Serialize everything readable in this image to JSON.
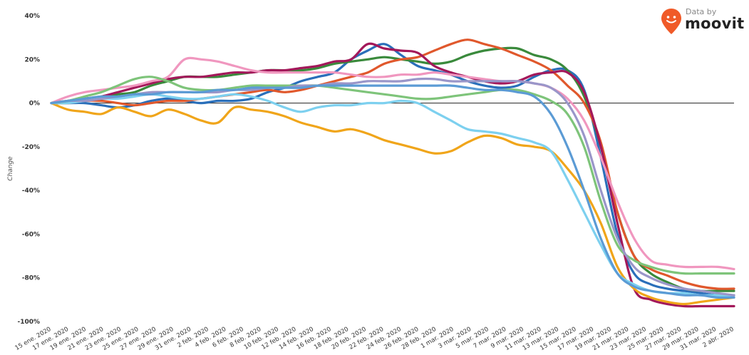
{
  "brand": {
    "caption": "Data by",
    "name": "moovit",
    "icon": "moovit-pin-icon",
    "color": "#f05a28"
  },
  "chart_data": {
    "type": "line",
    "title": "",
    "xlabel": "",
    "ylabel": "Change",
    "ylim": [
      -100,
      40
    ],
    "yticks": [
      40,
      20,
      0,
      -20,
      -40,
      -60,
      -80,
      -100
    ],
    "ytick_labels": [
      "40%",
      "20%",
      "0%",
      "-20%",
      "-40%",
      "-60%",
      "-80%",
      "-100%"
    ],
    "zero_line": true,
    "grid": false,
    "legend": "none",
    "x_tick_labels": [
      "15 ene. 2020",
      "17 ene. 2020",
      "19 ene. 2020",
      "21 ene. 2020",
      "23 ene. 2020",
      "25 ene. 2020",
      "27 ene. 2020",
      "29 ene. 2020",
      "31 ene. 2020",
      "2 feb. 2020",
      "4 feb. 2020",
      "6 feb. 2020",
      "8 feb. 2020",
      "10 feb. 2020",
      "12 feb. 2020",
      "14 feb. 2020",
      "16 feb. 2020",
      "18 feb. 2020",
      "20 feb. 2020",
      "22 feb. 2020",
      "24 feb. 2020",
      "26 feb. 2020",
      "28 feb. 2020",
      "1 mar. 2020",
      "3 mar. 2020",
      "5 mar. 2020",
      "7 mar. 2020",
      "9 mar. 2020",
      "11 mar. 2020",
      "13 mar. 2020",
      "15 mar. 2020",
      "17 mar. 2020",
      "19 mar. 2020",
      "21 mar. 2020",
      "23 mar. 2020",
      "25 mar. 2020",
      "27 mar. 2020",
      "29 mar. 2020",
      "31 mar. 2020",
      "2 abr. 2020"
    ],
    "series": [
      {
        "color": "#2a6fba",
        "values": [
          0,
          0,
          0,
          -1,
          -2,
          -1,
          1,
          2,
          1,
          0,
          1,
          1,
          2,
          5,
          7,
          10,
          12,
          14,
          20,
          24,
          27,
          22,
          17,
          15,
          13,
          10,
          8,
          7,
          8,
          12,
          15,
          15,
          6,
          -25,
          -60,
          -78,
          -83,
          -85,
          -86,
          -87,
          -88,
          -88
        ]
      },
      {
        "color": "#3a8a3c",
        "values": [
          0,
          1,
          2,
          3,
          4,
          5,
          8,
          10,
          12,
          12,
          12,
          13,
          14,
          15,
          15,
          15,
          16,
          18,
          19,
          20,
          21,
          20,
          19,
          18,
          19,
          22,
          24,
          25,
          25,
          22,
          20,
          15,
          3,
          -20,
          -50,
          -70,
          -78,
          -82,
          -85,
          -86,
          -86,
          -86
        ]
      },
      {
        "color": "#e0582c",
        "values": [
          0,
          0,
          1,
          1,
          0,
          -1,
          0,
          1,
          1,
          2,
          3,
          4,
          5,
          6,
          5,
          6,
          8,
          10,
          12,
          14,
          18,
          20,
          21,
          24,
          27,
          29,
          27,
          25,
          22,
          19,
          15,
          8,
          0,
          -18,
          -50,
          -70,
          -76,
          -79,
          -82,
          -84,
          -85,
          -85
        ]
      },
      {
        "color": "#a3185a",
        "values": [
          0,
          1,
          2,
          3,
          5,
          7,
          9,
          11,
          12,
          12,
          13,
          14,
          14,
          15,
          15,
          16,
          17,
          19,
          20,
          27,
          25,
          24,
          23,
          17,
          14,
          12,
          10,
          9,
          10,
          13,
          14,
          14,
          5,
          -20,
          -55,
          -85,
          -90,
          -92,
          -93,
          -93,
          -93,
          -93
        ]
      },
      {
        "color": "#f0a51a",
        "values": [
          0,
          -3,
          -4,
          -5,
          -2,
          -4,
          -6,
          -3,
          -5,
          -8,
          -9,
          -2,
          -3,
          -4,
          -6,
          -9,
          -11,
          -13,
          -12,
          -14,
          -17,
          -19,
          -21,
          -23,
          -22,
          -18,
          -15,
          -16,
          -19,
          -20,
          -22,
          -30,
          -40,
          -55,
          -75,
          -85,
          -89,
          -91,
          -92,
          -91,
          -90,
          -89
        ]
      },
      {
        "color": "#7dd0ef",
        "values": [
          0,
          0,
          1,
          2,
          2,
          3,
          4,
          3,
          2,
          2,
          3,
          4,
          3,
          1,
          -2,
          -4,
          -2,
          -1,
          -1,
          0,
          0,
          1,
          0,
          -4,
          -8,
          -12,
          -13,
          -14,
          -16,
          -18,
          -22,
          -35,
          -50,
          -65,
          -78,
          -83,
          -86,
          -87,
          -87,
          -88,
          -88,
          -89
        ]
      },
      {
        "color": "#f097bf",
        "values": [
          0,
          3,
          5,
          6,
          7,
          8,
          10,
          12,
          20,
          20,
          19,
          17,
          15,
          14,
          14,
          14,
          14,
          14,
          13,
          12,
          12,
          13,
          13,
          14,
          13,
          12,
          11,
          10,
          10,
          9,
          7,
          2,
          -8,
          -25,
          -45,
          -62,
          -72,
          -74,
          -75,
          -75,
          -75,
          -76
        ]
      },
      {
        "color": "#7ec47a",
        "values": [
          0,
          1,
          3,
          5,
          8,
          11,
          12,
          10,
          7,
          6,
          6,
          7,
          8,
          8,
          8,
          8,
          8,
          7,
          6,
          5,
          4,
          3,
          2,
          2,
          3,
          4,
          5,
          6,
          6,
          4,
          1,
          -5,
          -20,
          -45,
          -65,
          -72,
          -75,
          -77,
          -78,
          -78,
          -78,
          -78
        ]
      },
      {
        "color": "#9a96c9",
        "values": [
          0,
          1,
          1,
          2,
          3,
          4,
          5,
          5,
          5,
          5,
          5,
          6,
          6,
          7,
          7,
          8,
          8,
          9,
          9,
          10,
          10,
          10,
          11,
          11,
          10,
          10,
          10,
          10,
          10,
          9,
          7,
          0,
          -15,
          -40,
          -62,
          -75,
          -80,
          -83,
          -85,
          -86,
          -87,
          -88
        ]
      },
      {
        "color": "#5b9bd5",
        "values": [
          0,
          1,
          2,
          3,
          3,
          4,
          4,
          5,
          5,
          5,
          6,
          6,
          7,
          7,
          7,
          7,
          8,
          8,
          8,
          8,
          8,
          8,
          8,
          8,
          8,
          7,
          6,
          6,
          5,
          3,
          -5,
          -20,
          -40,
          -62,
          -78,
          -84,
          -86,
          -87,
          -88,
          -88,
          -89,
          -89
        ]
      }
    ]
  }
}
